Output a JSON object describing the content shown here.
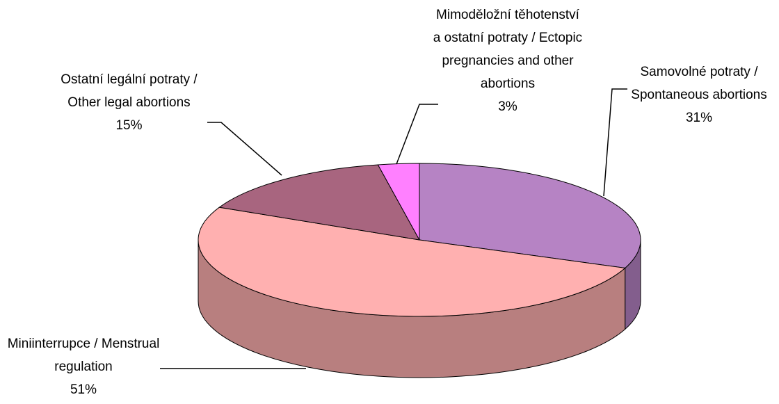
{
  "chart_data": {
    "type": "pie",
    "categories": [
      "Samovolné potraty / Spontaneous abortions",
      "Miniinterrupce / Menstrual regulation",
      "Ostatní legální potraty / Other legal abortions",
      "Mimoděložní těhotenství a ostatní potraty / Ectopic pregnancies and other abortions"
    ],
    "values": [
      31,
      51,
      15,
      3
    ],
    "value_labels": [
      "31%",
      "51%",
      "15%",
      "3%"
    ],
    "colors": [
      "#b683c4",
      "#ffb0b0",
      "#a8657f",
      "#ff80ff"
    ]
  }
}
